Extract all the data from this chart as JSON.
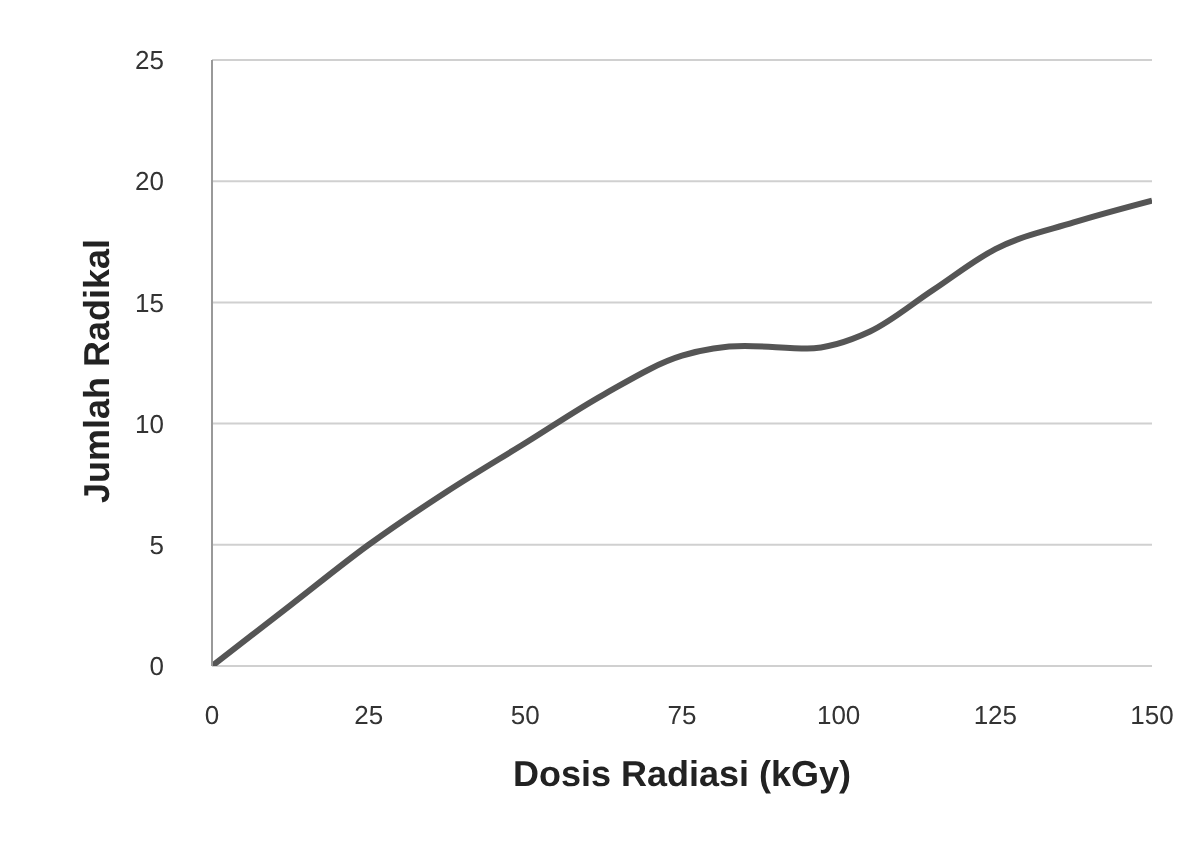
{
  "chart_data": {
    "type": "line",
    "xlabel": "Dosis Radiasi (kGy)",
    "ylabel": "Jumlah Radikal",
    "x": [
      0,
      12.5,
      25,
      37.5,
      50,
      62.5,
      75,
      85,
      95,
      105,
      115,
      125,
      137.5,
      150
    ],
    "series": [
      {
        "color": "#555555",
        "values": [
          0,
          2.5,
          5,
          7.2,
          9.2,
          11.2,
          12.8,
          13.2,
          13.1,
          13.8,
          15.5,
          17.2,
          18.3,
          19.2
        ]
      }
    ],
    "xlim": [
      0,
      150
    ],
    "xticks": [
      0,
      25,
      50,
      75,
      100,
      125,
      150
    ],
    "ylim": [
      0,
      25
    ],
    "yticks": [
      0,
      5,
      10,
      15,
      20,
      25
    ],
    "grid": "y",
    "marker": "none",
    "line_style": "solid",
    "legend": false
  }
}
